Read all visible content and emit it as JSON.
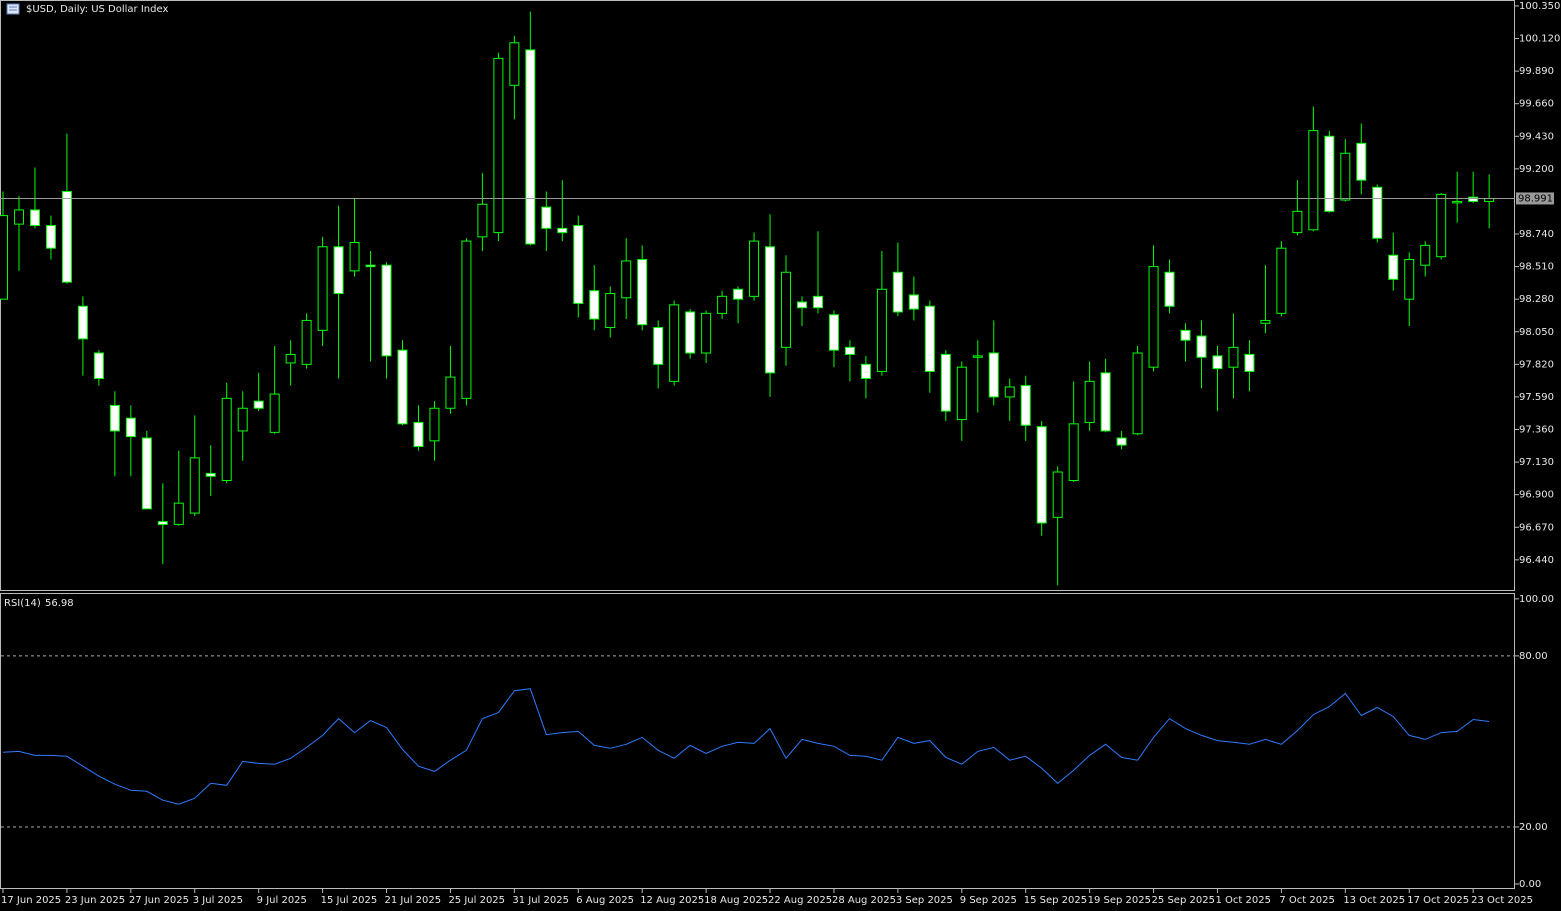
{
  "chart_data": [
    {
      "type": "candlestick",
      "title": "$USD, Daily: US Dollar Index",
      "categories": [
        "17 Jun 2025",
        null,
        null,
        null,
        "23 Jun 2025",
        null,
        null,
        null,
        "27 Jun 2025",
        null,
        null,
        null,
        "3 Jul 2025",
        null,
        null,
        null,
        "9 Jul 2025",
        null,
        null,
        null,
        "15 Jul 2025",
        null,
        null,
        null,
        "21 Jul 2025",
        null,
        null,
        null,
        "25 Jul 2025",
        null,
        null,
        null,
        "31 Jul 2025",
        null,
        null,
        null,
        "6 Aug 2025",
        null,
        null,
        null,
        "12 Aug 2025",
        null,
        null,
        null,
        "18 Aug 2025",
        null,
        null,
        null,
        "22 Aug 2025",
        null,
        null,
        null,
        "28 Aug 2025",
        null,
        null,
        null,
        "3 Sep 2025",
        null,
        null,
        null,
        "9 Sep 2025",
        null,
        null,
        null,
        "15 Sep 2025",
        null,
        null,
        null,
        "19 Sep 2025",
        null,
        null,
        null,
        "25 Sep 2025",
        null,
        null,
        null,
        "1 Oct 2025",
        null,
        null,
        null,
        "7 Oct 2025",
        null,
        null,
        null,
        "13 Oct 2025",
        null,
        null,
        null,
        "17 Oct 2025",
        null,
        null,
        null,
        "23 Oct 2025",
        null
      ],
      "open": [
        98.28,
        98.81,
        98.91,
        98.8,
        99.04,
        98.23,
        97.9,
        97.53,
        97.44,
        97.3,
        96.71,
        96.69,
        96.77,
        97.05,
        97.0,
        97.35,
        97.56,
        97.34,
        97.83,
        97.82,
        98.06,
        98.65,
        98.48,
        98.52,
        98.52,
        97.92,
        97.41,
        97.28,
        97.51,
        97.58,
        98.72,
        98.75,
        99.79,
        100.04,
        98.93,
        98.78,
        98.8,
        98.34,
        98.08,
        98.29,
        98.56,
        98.08,
        97.7,
        98.19,
        97.9,
        98.18,
        98.35,
        98.3,
        98.65,
        97.94,
        98.26,
        98.3,
        98.17,
        97.94,
        97.82,
        97.77,
        98.47,
        98.31,
        98.23,
        97.89,
        97.43,
        97.87,
        97.9,
        97.59,
        97.67,
        97.38,
        96.74,
        97.0,
        97.41,
        97.76,
        97.3,
        97.33,
        97.8,
        98.47,
        98.06,
        98.02,
        97.88,
        97.8,
        97.89,
        98.11,
        98.18,
        98.75,
        98.77,
        99.43,
        98.98,
        99.38,
        99.07,
        98.59,
        98.28,
        98.52,
        98.58,
        98.96,
        99.0,
        98.97
      ],
      "high": [
        99.04,
        99.01,
        99.21,
        98.87,
        99.45,
        98.3,
        97.92,
        97.63,
        97.53,
        97.35,
        96.98,
        97.21,
        97.46,
        97.25,
        97.69,
        97.63,
        97.76,
        97.95,
        97.99,
        98.18,
        98.72,
        98.94,
        98.99,
        98.62,
        98.54,
        97.99,
        97.53,
        97.56,
        97.95,
        98.71,
        99.17,
        100.02,
        100.14,
        100.31,
        99.04,
        99.12,
        98.87,
        98.52,
        98.37,
        98.71,
        98.66,
        98.13,
        98.27,
        98.21,
        98.2,
        98.34,
        98.37,
        98.75,
        98.88,
        98.59,
        98.3,
        98.76,
        98.2,
        97.99,
        97.88,
        98.62,
        98.68,
        98.44,
        98.27,
        97.92,
        97.84,
        97.99,
        98.13,
        97.72,
        97.74,
        97.42,
        97.1,
        97.7,
        97.84,
        97.86,
        97.35,
        97.95,
        98.66,
        98.56,
        98.11,
        98.13,
        97.95,
        98.18,
        97.99,
        98.52,
        98.69,
        99.12,
        99.64,
        99.47,
        99.41,
        99.52,
        99.09,
        98.75,
        98.61,
        98.69,
        99.03,
        99.18,
        99.18,
        99.16
      ],
      "low": [
        98.28,
        98.48,
        98.78,
        98.56,
        98.39,
        97.74,
        97.67,
        97.03,
        97.03,
        96.8,
        96.41,
        96.68,
        96.75,
        96.89,
        96.98,
        97.14,
        97.49,
        97.33,
        97.67,
        97.79,
        97.95,
        97.72,
        98.44,
        97.84,
        97.72,
        97.39,
        97.21,
        97.14,
        97.47,
        97.53,
        98.62,
        98.69,
        99.55,
        98.66,
        98.62,
        98.69,
        98.15,
        98.06,
        98.01,
        98.14,
        98.06,
        97.65,
        97.67,
        97.86,
        97.83,
        98.14,
        98.11,
        98.27,
        97.59,
        97.81,
        98.09,
        98.18,
        97.8,
        97.7,
        97.58,
        97.74,
        98.16,
        98.13,
        97.62,
        97.42,
        97.28,
        97.48,
        97.53,
        97.42,
        97.28,
        96.61,
        96.26,
        96.99,
        97.35,
        97.34,
        97.22,
        97.32,
        97.77,
        98.18,
        97.84,
        97.65,
        97.49,
        97.58,
        97.63,
        98.04,
        98.16,
        98.73,
        98.76,
        98.89,
        98.97,
        99.02,
        98.68,
        98.34,
        98.09,
        98.44,
        98.56,
        98.82,
        98.96,
        98.78
      ],
      "close": [
        98.87,
        98.91,
        98.8,
        98.64,
        98.4,
        98.0,
        97.72,
        97.35,
        97.31,
        96.8,
        96.69,
        96.84,
        97.16,
        97.03,
        97.58,
        97.51,
        97.51,
        97.61,
        97.89,
        98.13,
        98.65,
        98.32,
        98.68,
        98.51,
        97.88,
        97.4,
        97.24,
        97.51,
        97.73,
        98.69,
        98.95,
        99.98,
        100.09,
        98.67,
        98.78,
        98.75,
        98.25,
        98.14,
        98.32,
        98.55,
        98.1,
        97.82,
        98.24,
        97.9,
        98.18,
        98.3,
        98.28,
        98.69,
        97.76,
        98.47,
        98.22,
        98.22,
        97.92,
        97.89,
        97.72,
        98.35,
        98.19,
        98.21,
        97.77,
        97.49,
        97.8,
        97.88,
        97.59,
        97.66,
        97.39,
        96.7,
        97.06,
        97.4,
        97.7,
        97.35,
        97.25,
        97.9,
        98.51,
        98.23,
        97.99,
        97.87,
        97.79,
        97.94,
        97.77,
        98.13,
        98.64,
        98.9,
        99.47,
        98.9,
        99.31,
        99.12,
        98.71,
        98.42,
        98.56,
        98.66,
        99.02,
        98.97,
        98.97,
        98.991
      ],
      "up_color": "#000000",
      "down_color": "#ffffff",
      "wick_color": "#00ff00",
      "last_price": 98.991,
      "ylim": [
        96.22,
        100.385
      ],
      "yticks": [
        {
          "value": 100.35,
          "label": "100.350"
        },
        {
          "value": 100.12,
          "label": "100.120"
        },
        {
          "value": 99.89,
          "label": "99.890"
        },
        {
          "value": 99.66,
          "label": "99.660"
        },
        {
          "value": 99.43,
          "label": "99.430"
        },
        {
          "value": 99.2,
          "label": "99.200"
        },
        {
          "value": 98.74,
          "label": "98.740"
        },
        {
          "value": 98.51,
          "label": "98.510"
        },
        {
          "value": 98.28,
          "label": "98.280"
        },
        {
          "value": 98.05,
          "label": "98.050"
        },
        {
          "value": 97.82,
          "label": "97.820"
        },
        {
          "value": 97.59,
          "label": "97.590"
        },
        {
          "value": 97.36,
          "label": "97.360"
        },
        {
          "value": 97.13,
          "label": "97.130"
        },
        {
          "value": 96.9,
          "label": "96.900"
        },
        {
          "value": 96.67,
          "label": "96.670"
        },
        {
          "value": 96.44,
          "label": "96.440"
        }
      ]
    },
    {
      "type": "line",
      "series": [
        {
          "name": "RSI(14)",
          "color": "#2f7bff",
          "values": [
            46.2,
            46.5,
            45.1,
            45.1,
            44.8,
            41.3,
            37.8,
            35.0,
            32.9,
            32.5,
            29.4,
            28.0,
            30.1,
            35.3,
            34.6,
            43.0,
            42.3,
            42.0,
            44.1,
            47.9,
            52.1,
            58.0,
            53.1,
            57.3,
            54.9,
            47.2,
            41.3,
            39.5,
            43.4,
            46.9,
            58.0,
            60.1,
            67.8,
            68.5,
            52.4,
            53.1,
            53.5,
            48.6,
            47.6,
            49.0,
            51.4,
            46.9,
            44.1,
            48.6,
            45.8,
            48.3,
            49.7,
            49.3,
            54.5,
            44.1,
            50.7,
            49.3,
            48.3,
            45.1,
            44.8,
            43.4,
            51.4,
            49.3,
            50.3,
            44.4,
            42.0,
            46.5,
            47.9,
            43.4,
            44.8,
            40.6,
            35.3,
            39.9,
            45.1,
            49.0,
            44.4,
            43.4,
            51.4,
            58.0,
            54.5,
            52.1,
            50.3,
            49.7,
            49.0,
            50.7,
            49.0,
            53.8,
            59.4,
            62.2,
            66.8,
            59.1,
            61.9,
            58.7,
            52.1,
            50.7,
            53.1,
            53.5,
            57.7,
            56.98
          ]
        }
      ],
      "levels": [
        20,
        80
      ],
      "ylim": [
        -1.75,
        101.7
      ],
      "yticks": [
        {
          "value": 100,
          "label": "100.00"
        },
        {
          "value": 80,
          "label": "80.00"
        },
        {
          "value": 20,
          "label": "20.00"
        },
        {
          "value": 0,
          "label": "0.00"
        }
      ]
    }
  ]
}
